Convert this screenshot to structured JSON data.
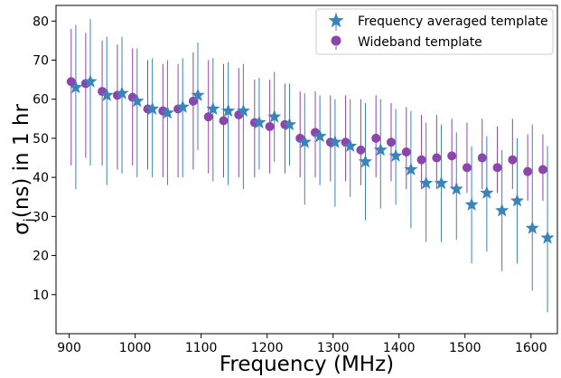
{
  "chart_data": {
    "type": "scatter",
    "title": "",
    "xlabel": "Frequency (MHz)",
    "ylabel_main": "σ",
    "ylabel_sub": "j",
    "ylabel_rest": "(ns) in 1 hr",
    "xlim": [
      880,
      1640
    ],
    "ylim": [
      0,
      84
    ],
    "xticks": [
      900,
      1000,
      1100,
      1200,
      1300,
      1400,
      1500,
      1600
    ],
    "yticks": [
      10,
      20,
      30,
      40,
      50,
      60,
      70,
      80
    ],
    "grid": false,
    "legend_position": "top-right",
    "colors": {
      "freq_avg": "#3b84b8",
      "wideband": "#8e44ad"
    },
    "series": [
      {
        "name": "Frequency averaged template",
        "marker": "star",
        "x": [
          910,
          932,
          957,
          980,
          1003,
          1026,
          1049,
          1072,
          1095,
          1118,
          1141,
          1164,
          1188,
          1211,
          1234,
          1257,
          1280,
          1303,
          1326,
          1349,
          1372,
          1395,
          1418,
          1441,
          1464,
          1487,
          1510,
          1533,
          1556,
          1579,
          1602,
          1625
        ],
        "y": [
          63,
          64.5,
          61,
          61.5,
          59.5,
          57.5,
          56.5,
          58,
          61,
          57.5,
          57,
          57,
          54,
          55.5,
          53.5,
          49,
          50.5,
          49,
          48,
          44,
          47,
          45.5,
          42,
          38.5,
          38.5,
          37,
          33,
          36,
          31.5,
          34,
          27,
          24.5
        ],
        "err_low": [
          37,
          43,
          38,
          41,
          40,
          40,
          38,
          40,
          47,
          39,
          38,
          37,
          42,
          44,
          43,
          33,
          38,
          32.5,
          35,
          29,
          32,
          33,
          27,
          23.5,
          23.5,
          24,
          18,
          21,
          16,
          18,
          11,
          5.5
        ],
        "err_high": [
          79,
          80.5,
          76,
          76,
          73,
          70.5,
          70,
          70.5,
          74.5,
          70.5,
          69.5,
          69,
          65.5,
          67,
          64,
          61.5,
          61,
          60,
          60,
          59,
          60,
          57.5,
          57,
          54,
          53.5,
          51.5,
          48,
          50.5,
          47,
          50,
          53.5,
          48
        ]
      },
      {
        "name": "Wideband template",
        "marker": "circle",
        "x": [
          903,
          925,
          950,
          973,
          996,
          1019,
          1042,
          1065,
          1088,
          1111,
          1134,
          1157,
          1181,
          1204,
          1227,
          1250,
          1273,
          1296,
          1319,
          1342,
          1365,
          1388,
          1411,
          1434,
          1457,
          1480,
          1503,
          1526,
          1549,
          1572,
          1595,
          1618
        ],
        "y": [
          64.5,
          64,
          62,
          61,
          60.5,
          57.5,
          57,
          57.5,
          59.5,
          55.5,
          54.5,
          56,
          54,
          53,
          53.5,
          50,
          51.5,
          49,
          49,
          47,
          50,
          49,
          46.5,
          44.5,
          45,
          45.5,
          42.5,
          45,
          42.5,
          44.5,
          41.5,
          42
        ]
      }
    ]
  }
}
